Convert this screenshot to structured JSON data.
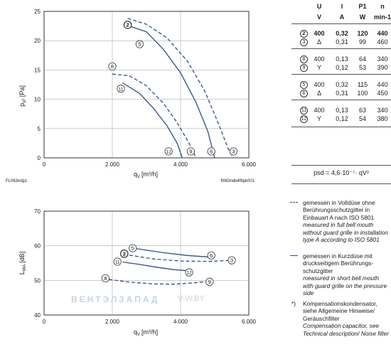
{
  "top_chart": {
    "ylabel_main": "p",
    "ylabel_sub": "sF",
    "ylabel_unit": "[Pa]",
    "xlabel_main": "q",
    "xlabel_sub": "V",
    "xlabel_unit": "[m³/h]",
    "footer_left": "FL063ndp1",
    "footer_right": "fl063ndk4f6pk001"
  },
  "bottom_chart": {
    "ylabel_main": "L",
    "ylabel_sub": "WA",
    "ylabel_unit": "[dB]",
    "xlabel_main": "q",
    "xlabel_sub": "V",
    "xlabel_unit": "[m³/h]"
  },
  "chart_data": [
    {
      "type": "line",
      "ylabel": "psF [Pa]",
      "xlabel": "qV [m³/h]",
      "xlim": [
        0,
        6000
      ],
      "ylim": [
        0,
        25
      ],
      "x_ticks": [
        "0",
        "2.000",
        "4.000",
        "6.000"
      ],
      "y_ticks": [
        "0",
        "5",
        "10",
        "15",
        "20",
        "25"
      ],
      "series": [
        {
          "name": "2",
          "style": "dashed",
          "label_at": [
            2450,
            22.7
          ],
          "points": [
            [
              2450,
              23.8
            ],
            [
              3000,
              22.8
            ],
            [
              3600,
              20.5
            ],
            [
              4200,
              16.5
            ],
            [
              4700,
              11.5
            ],
            [
              5100,
              6.0
            ],
            [
              5400,
              1.5
            ],
            [
              5550,
              0
            ]
          ]
        },
        {
          "name": "5",
          "style": "solid",
          "label_at": [
            2800,
            19.4
          ],
          "points": [
            [
              2500,
              22.5
            ],
            [
              3000,
              21.5
            ],
            [
              3500,
              18.5
            ],
            [
              4000,
              14.5
            ],
            [
              4450,
              9.5
            ],
            [
              4800,
              4.5
            ],
            [
              5000,
              0
            ]
          ]
        },
        {
          "name": "8",
          "style": "dashed",
          "label_at": [
            2000,
            15.6
          ],
          "points": [
            [
              2000,
              14.3
            ],
            [
              2500,
              14.0
            ],
            [
              3000,
              12.3
            ],
            [
              3500,
              9.3
            ],
            [
              3900,
              6.0
            ],
            [
              4250,
              2.5
            ],
            [
              4450,
              0
            ]
          ]
        },
        {
          "name": "11",
          "style": "solid",
          "label_at": [
            2250,
            11.8
          ],
          "points": [
            [
              2300,
              12.8
            ],
            [
              2800,
              11.0
            ],
            [
              3200,
              8.5
            ],
            [
              3600,
              5.5
            ],
            [
              3900,
              2.5
            ],
            [
              4050,
              0
            ]
          ]
        },
        {
          "name": "12",
          "label_at": [
            3650,
            1.1
          ]
        },
        {
          "name": "9",
          "label_at": [
            4300,
            1.1
          ]
        },
        {
          "name": "6",
          "label_at": [
            4900,
            1.1
          ]
        },
        {
          "name": "3",
          "label_at": [
            5550,
            1.1
          ]
        }
      ]
    },
    {
      "type": "line",
      "ylabel": "LWA [dB]",
      "xlabel": "qV [m³/h]",
      "xlim": [
        0,
        6000
      ],
      "ylim": [
        40,
        70
      ],
      "x_ticks": [
        "0",
        "2.000",
        "4.000",
        "6.000"
      ],
      "y_ticks": [
        "40",
        "50",
        "60",
        "70"
      ],
      "series": [
        {
          "name": "2",
          "style": "dashed",
          "label_at": [
            2350,
            57.7
          ],
          "points": [
            [
              2500,
              57.3
            ],
            [
              3200,
              56.2
            ],
            [
              4000,
              55.6
            ],
            [
              4800,
              55.5
            ],
            [
              5500,
              55.8
            ]
          ]
        },
        {
          "name": "3",
          "label_at": [
            5500,
            55.8
          ]
        },
        {
          "name": "5",
          "style": "solid",
          "label_at": [
            2600,
            59.3
          ],
          "points": [
            [
              2700,
              59.2
            ],
            [
              3500,
              58.0
            ],
            [
              4200,
              57.2
            ],
            [
              4900,
              56.7
            ]
          ]
        },
        {
          "name": "6",
          "label_at": [
            4900,
            57.2
          ]
        },
        {
          "name": "11",
          "style": "solid",
          "label_at": [
            2150,
            55.4
          ],
          "points": [
            [
              2300,
              55.3
            ],
            [
              2800,
              54.6
            ],
            [
              3300,
              53.8
            ],
            [
              3800,
              53.1
            ],
            [
              4200,
              52.8
            ]
          ]
        },
        {
          "name": "12",
          "label_at": [
            4250,
            52.3
          ]
        },
        {
          "name": "8",
          "style": "dashed",
          "label_at": [
            1800,
            50.6
          ],
          "points": [
            [
              1900,
              50.3
            ],
            [
              2500,
              49.5
            ],
            [
              3200,
              49.0
            ],
            [
              3800,
              48.9
            ],
            [
              4400,
              49.3
            ],
            [
              4900,
              49.8
            ]
          ]
        },
        {
          "name": "9",
          "label_at": [
            4850,
            49.6
          ]
        }
      ]
    }
  ],
  "table": {
    "head": [
      "U",
      "I",
      "P1",
      "n"
    ],
    "units": [
      "V",
      "A",
      "W",
      "min-1"
    ],
    "groups": [
      [
        {
          "num": "2",
          "U": "400",
          "I": "0,32",
          "P": "120",
          "n": "440",
          "bold": true
        },
        {
          "num": "3",
          "U": "Δ",
          "I": "0,31",
          "P": "99",
          "n": "460",
          "bold": false
        }
      ],
      [
        {
          "num": "8",
          "U": "400",
          "I": "0,13",
          "P": "64",
          "n": "340",
          "bold": false
        },
        {
          "num": "9",
          "U": "Y",
          "I": "0,12",
          "P": "53",
          "n": "390",
          "bold": false
        }
      ],
      [
        {
          "num": "5",
          "U": "400",
          "I": "0,32",
          "P": "115",
          "n": "440",
          "bold": false
        },
        {
          "num": "6",
          "U": "Δ",
          "I": "0,31",
          "P": "100",
          "n": "450",
          "bold": false
        }
      ],
      [
        {
          "num": "11",
          "U": "400",
          "I": "0,13",
          "P": "63",
          "n": "340",
          "bold": false
        },
        {
          "num": "12",
          "U": "Y",
          "I": "0,12",
          "P": "54",
          "n": "380",
          "bold": false
        }
      ]
    ],
    "formula": "psd = 4,6·10⁻⁷· qV²"
  },
  "legend": {
    "dashed_de": "gemessen in Volldüse ohne Berührungsschutzgitter in Einbauart A nach ISO 5801",
    "dashed_en": "measured in full bell mouth without guard grille in installation type A according to ISO 5801",
    "solid_de": "gemessen in Kurzdüse mit druckseitigem Berührungs-schutzgitter",
    "solid_en": "measured in short bell mouth with guard grille on the pressure side",
    "note_mark": "*)",
    "note_de": "Kompensationskondensator, siehe Allgemeine Hinweise/ Geräuschfilter",
    "note_en": "Compensation capacitor, see Technical description/ Noise filter"
  },
  "watermark": {
    "text": "ВЕНТЭЛЗАПАД",
    "url": "V-W.BY"
  },
  "colors": {
    "line": "#2d4f86",
    "axis": "#333333",
    "grid": "#9a9a9a",
    "text": "#1a1a1a"
  }
}
